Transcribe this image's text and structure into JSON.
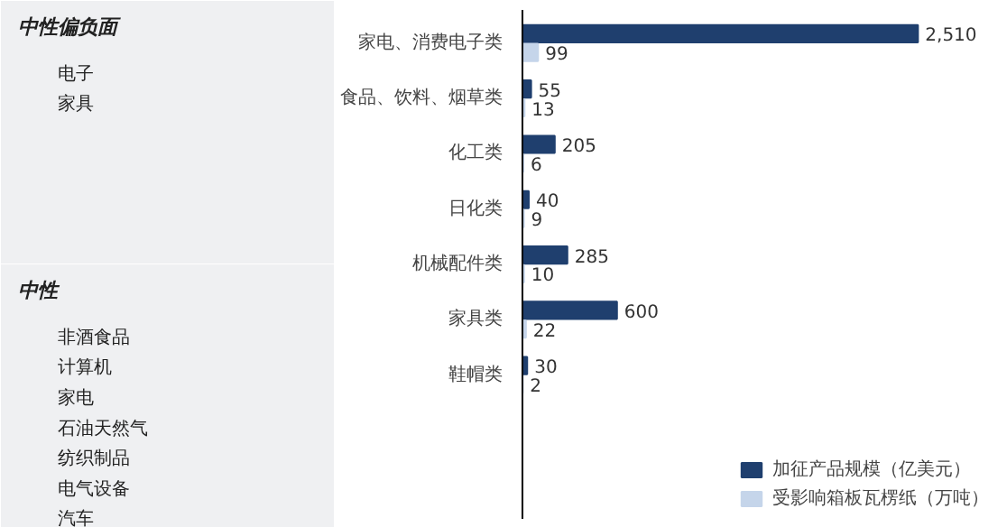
{
  "chart_data": [
    {
      "type": "other",
      "title": "中性偏负面",
      "annotations": [
        "电子",
        "家具"
      ]
    },
    {
      "type": "other",
      "title": "中性",
      "annotations": [
        "非酒食品",
        "计算机",
        "家电",
        "石油天然气",
        "纺织制品",
        "电气设备",
        "汽车"
      ]
    },
    {
      "type": "bar",
      "orientation": "horizontal",
      "categories": [
        "家电、消费电子类",
        "食品、饮料、烟草类",
        "化工类",
        "日化类",
        "机械配件类",
        "家具类",
        "鞋帽类"
      ],
      "legend": "bottom",
      "series": [
        {
          "name": "加征产品规模（亿美元）",
          "color": "#1f3f6e",
          "values": [
            2510,
            55,
            205,
            40,
            285,
            600,
            30
          ],
          "value_labels": [
            "2,510",
            "55",
            "205",
            "40",
            "285",
            "600",
            "30"
          ]
        },
        {
          "name": "受影响箱板瓦楞纸（万吨）",
          "color": "#c5d5ea",
          "values": [
            99,
            13,
            6,
            9,
            10,
            22,
            2
          ],
          "value_labels": [
            "99",
            "13",
            "6",
            "9",
            "10",
            "22",
            "2"
          ]
        }
      ]
    }
  ]
}
